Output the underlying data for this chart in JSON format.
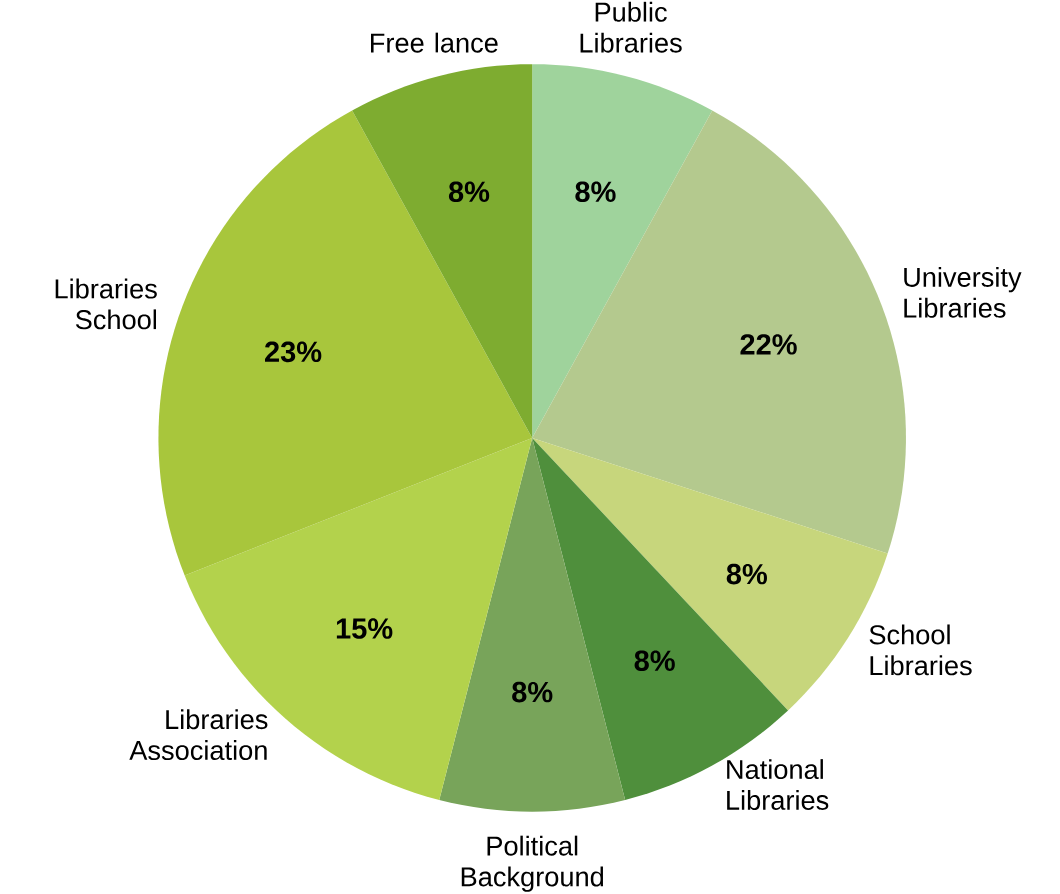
{
  "chart_data": {
    "type": "pie",
    "categories": [
      "Public Libraries",
      "University Libraries",
      "School Libraries",
      "National Libraries",
      "Political Background",
      "Libraries Association",
      "Libraries School",
      "Free lance"
    ],
    "values": [
      8,
      22,
      8,
      8,
      8,
      15,
      23,
      8
    ],
    "colors": [
      "#9fd39c",
      "#b4c98e",
      "#c7d67c",
      "#4f8f3c",
      "#78a45a",
      "#b3d24c",
      "#a8c63c",
      "#7eac30"
    ],
    "value_labels": [
      "8%",
      "22%",
      "8%",
      "8%",
      "8%",
      "15%",
      "23%",
      "8%"
    ]
  }
}
